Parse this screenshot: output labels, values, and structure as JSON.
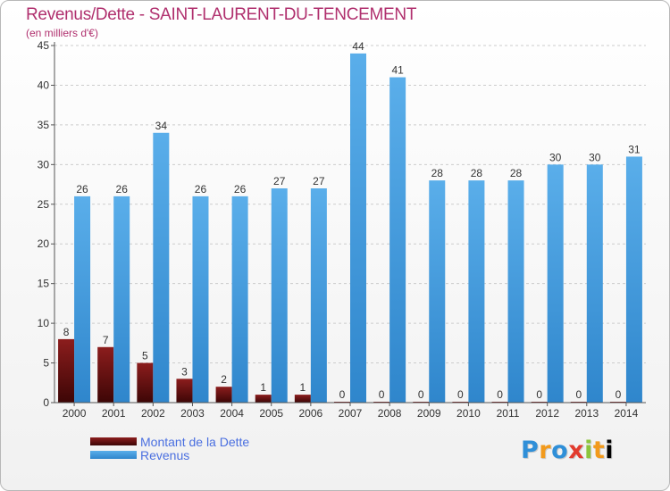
{
  "header": {
    "title": "Revenus/Dette - SAINT-LAURENT-DU-TENCEMENT",
    "subtitle": "(en milliers d'€)"
  },
  "legend": {
    "items": [
      {
        "label": "Montant de la Dette",
        "color": "#7a1414"
      },
      {
        "label": "Revenus",
        "color": "#4da3e3"
      }
    ]
  },
  "logo": {
    "text": "Proxiti"
  },
  "colors": {
    "debt_top": "#8c1d1d",
    "debt_bottom": "#3d0606",
    "revenue_top": "#5aaeea",
    "revenue_bottom": "#2f86cc",
    "axis": "#555555",
    "grid": "#cccccc"
  },
  "chart_data": {
    "type": "bar",
    "title": "Revenus/Dette - SAINT-LAURENT-DU-TENCEMENT",
    "subtitle": "(en milliers d'€)",
    "categories": [
      "2000",
      "2001",
      "2002",
      "2003",
      "2004",
      "2005",
      "2006",
      "2007",
      "2008",
      "2009",
      "2010",
      "2011",
      "2012",
      "2013",
      "2014"
    ],
    "series": [
      {
        "name": "Montant de la Dette",
        "values": [
          8,
          7,
          5,
          3,
          2,
          1,
          1,
          0,
          0,
          0,
          0,
          0,
          0,
          0,
          0
        ]
      },
      {
        "name": "Revenus",
        "values": [
          26,
          26,
          34,
          26,
          26,
          27,
          27,
          44,
          41,
          28,
          28,
          28,
          30,
          30,
          31
        ]
      }
    ],
    "ylim": [
      0,
      45
    ],
    "yticks": [
      0,
      5,
      10,
      15,
      20,
      25,
      30,
      35,
      40,
      45
    ],
    "grid": "horizontal dashed",
    "legend_position": "bottom-left"
  }
}
